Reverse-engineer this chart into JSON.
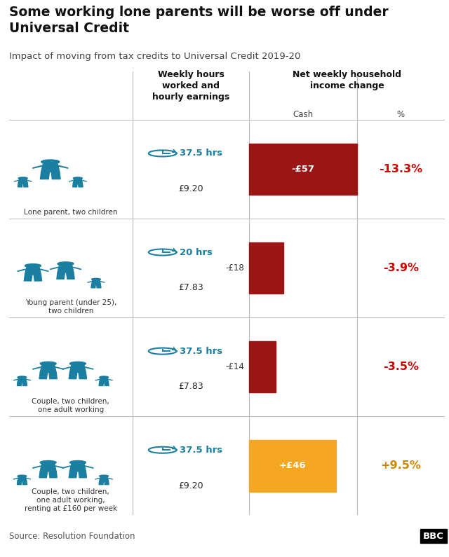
{
  "title": "Some working lone parents will be worse off under\nUniversal Credit",
  "subtitle": "Impact of moving from tax credits to Universal Credit 2019-20",
  "col_header_hours": "Weekly hours\nworked and\nhourly earnings",
  "col_header_income": "Net weekly household\nincome change",
  "col_cash": "Cash",
  "col_pct": "%",
  "rows": [
    {
      "label": "Lone parent, two children",
      "hours": "37.5 hrs",
      "earnings": "£9.20",
      "cash_value": -57,
      "cash_label": "-£57",
      "pct_label": "-13.3%",
      "bar_color": "#9b1515",
      "pct_color": "#cc0000",
      "family_type": "lone_parent_2"
    },
    {
      "label": "Young parent (under 25),\ntwo children",
      "hours": "20 hrs",
      "earnings": "£7.83",
      "cash_value": -18,
      "cash_label": "-£18",
      "pct_label": "-3.9%",
      "bar_color": "#9b1515",
      "pct_color": "#cc0000",
      "family_type": "young_parent_2"
    },
    {
      "label": "Couple, two children,\none adult working",
      "hours": "37.5 hrs",
      "earnings": "£7.83",
      "cash_value": -14,
      "cash_label": "-£14",
      "pct_label": "-3.5%",
      "bar_color": "#9b1515",
      "pct_color": "#cc0000",
      "family_type": "couple_2"
    },
    {
      "label": "Couple, two children,\none adult working,\nrenting at £160 per week",
      "hours": "37.5 hrs",
      "earnings": "£9.20",
      "cash_value": 46,
      "cash_label": "+£46",
      "pct_label": "+9.5%",
      "bar_color": "#f5a623",
      "pct_color": "#888888",
      "family_type": "couple_2_rent"
    }
  ],
  "source": "Source: Resolution Foundation",
  "bbc_text": "BBC",
  "bg_color": "#ffffff",
  "grid_color": "#bbbbbb",
  "teal_color": "#1a7fa0",
  "label_color": "#333333",
  "max_bar": 57
}
